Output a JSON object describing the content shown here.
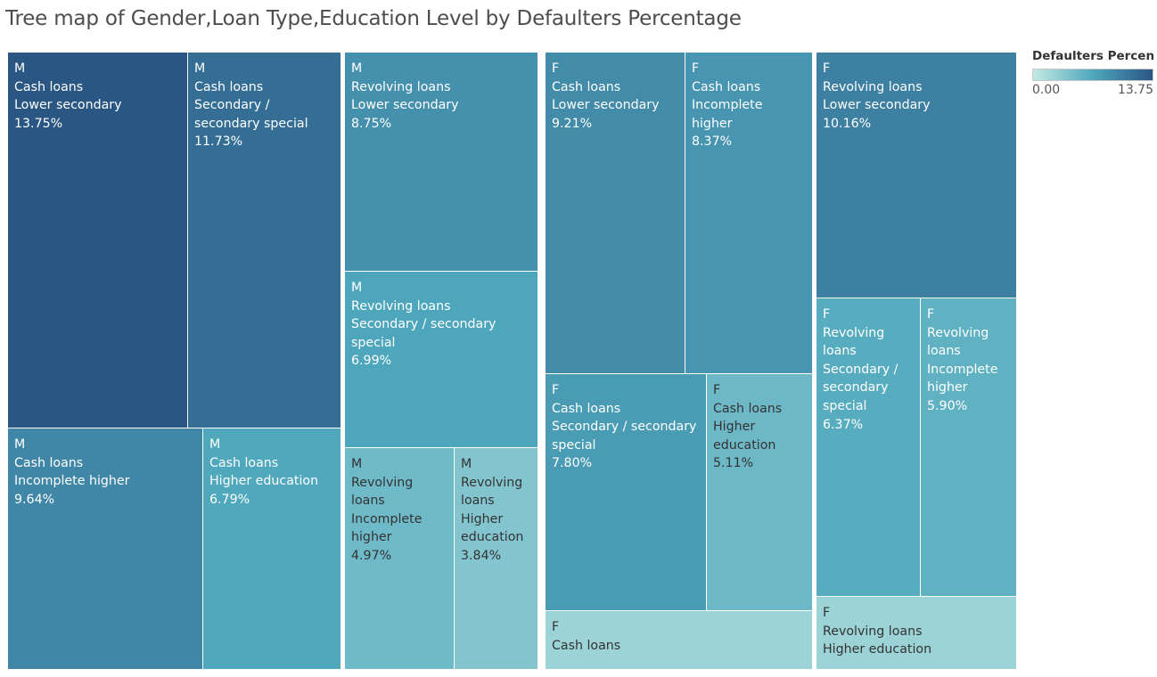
{
  "title": "Tree map of Gender,Loan Type,Education Level by Defaulters Percentage",
  "legend": {
    "title": "Defaulters Percen..",
    "min_label": "0.00",
    "max_label": "13.75"
  },
  "chart_data": {
    "type": "treemap",
    "title": "Tree map of Gender,Loan Type,Education Level by Defaulters Percentage",
    "color_measure": "Defaulters Percentage",
    "color_range": [
      0.0,
      13.75
    ],
    "color_scale": [
      "#c4eae3",
      "#4fa7bd",
      "#2a5683"
    ],
    "nodes": [
      {
        "gender": "M",
        "loan_type": "Cash loans",
        "lines": [
          "M",
          "Cash loans",
          "Lower secondary",
          "13.75%"
        ],
        "value": 13.75
      },
      {
        "gender": "M",
        "loan_type": "Cash loans",
        "lines": [
          "M",
          "Cash loans",
          "Secondary /",
          "secondary special",
          "11.73%"
        ],
        "value": 11.73
      },
      {
        "gender": "M",
        "loan_type": "Cash loans",
        "lines": [
          "M",
          "Cash loans",
          "Incomplete higher",
          "9.64%"
        ],
        "value": 9.64
      },
      {
        "gender": "M",
        "loan_type": "Cash loans",
        "lines": [
          "M",
          "Cash loans",
          "Higher education",
          "6.79%"
        ],
        "value": 6.79
      },
      {
        "gender": "M",
        "loan_type": "Revolving loans",
        "lines": [
          "M",
          "Revolving loans",
          "Lower secondary",
          "8.75%"
        ],
        "value": 8.75
      },
      {
        "gender": "M",
        "loan_type": "Revolving loans",
        "lines": [
          "M",
          "Revolving loans",
          "Secondary / secondary",
          "special",
          "6.99%"
        ],
        "value": 6.99
      },
      {
        "gender": "M",
        "loan_type": "Revolving loans",
        "lines": [
          "M",
          "Revolving",
          "loans",
          "Incomplete",
          "higher",
          "4.97%"
        ],
        "value": 4.97
      },
      {
        "gender": "M",
        "loan_type": "Revolving loans",
        "lines": [
          "M",
          "Revolving",
          "loans",
          "Higher",
          "education",
          "3.84%"
        ],
        "value": 3.84
      },
      {
        "gender": "F",
        "loan_type": "Cash loans",
        "lines": [
          "F",
          "Cash loans",
          "Lower secondary",
          "9.21%"
        ],
        "value": 9.21
      },
      {
        "gender": "F",
        "loan_type": "Cash loans",
        "lines": [
          "F",
          "Cash loans",
          "Incomplete",
          "higher",
          "8.37%"
        ],
        "value": 8.37
      },
      {
        "gender": "F",
        "loan_type": "Cash loans",
        "lines": [
          "F",
          "Cash loans",
          "Secondary / secondary",
          "special",
          "7.80%"
        ],
        "value": 7.8
      },
      {
        "gender": "F",
        "loan_type": "Cash loans",
        "lines": [
          "F",
          "Cash loans",
          "Higher",
          "education",
          "5.11%"
        ],
        "value": 5.11
      },
      {
        "gender": "F",
        "loan_type": "Cash loans",
        "lines": [
          "F",
          "Cash loans"
        ],
        "value": 2.4
      },
      {
        "gender": "F",
        "loan_type": "Revolving loans",
        "lines": [
          "F",
          "Revolving loans",
          "Lower secondary",
          "10.16%"
        ],
        "value": 10.16
      },
      {
        "gender": "F",
        "loan_type": "Revolving loans",
        "lines": [
          "F",
          "Revolving",
          "loans",
          "Secondary /",
          "secondary",
          "special",
          "6.37%"
        ],
        "value": 6.37
      },
      {
        "gender": "F",
        "loan_type": "Revolving loans",
        "lines": [
          "F",
          "Revolving",
          "loans",
          "Incomplete",
          "higher",
          "5.90%"
        ],
        "value": 5.9
      },
      {
        "gender": "F",
        "loan_type": "Revolving loans",
        "lines": [
          "F",
          "Revolving loans",
          "Higher education"
        ],
        "value": 2.4
      }
    ]
  }
}
